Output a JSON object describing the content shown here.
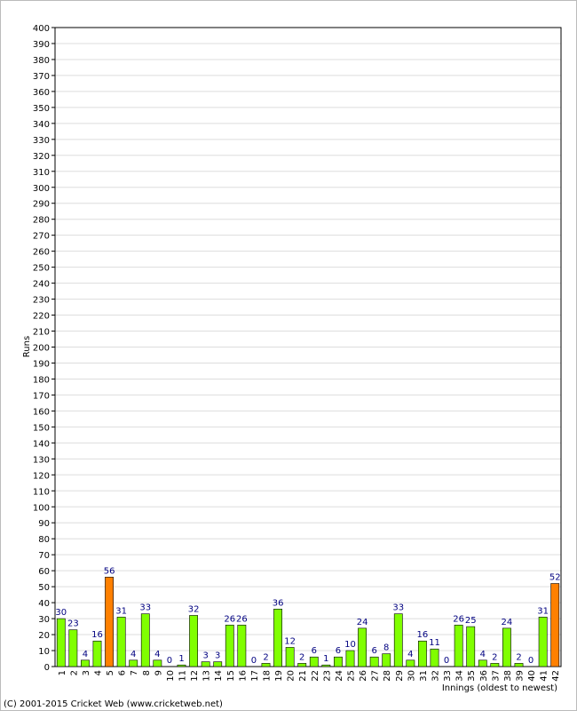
{
  "chart_data": {
    "type": "bar",
    "y_label": "Runs",
    "x_label": "Innings (oldest to newest)",
    "footer": "(C) 2001-2015 Cricket Web (www.cricketweb.net)",
    "categories": [
      "1",
      "2",
      "3",
      "4",
      "5",
      "6",
      "7",
      "8",
      "9",
      "10",
      "11",
      "12",
      "13",
      "14",
      "15",
      "16",
      "17",
      "18",
      "19",
      "20",
      "21",
      "22",
      "23",
      "24",
      "25",
      "26",
      "27",
      "28",
      "29",
      "30",
      "31",
      "32",
      "33",
      "34",
      "35",
      "36",
      "37",
      "38",
      "39",
      "40",
      "41",
      "42"
    ],
    "values": [
      30,
      23,
      4,
      16,
      56,
      31,
      4,
      33,
      4,
      0,
      1,
      32,
      3,
      3,
      26,
      26,
      0,
      2,
      36,
      12,
      2,
      6,
      1,
      6,
      10,
      24,
      6,
      8,
      33,
      4,
      16,
      11,
      0,
      26,
      25,
      4,
      2,
      24,
      2,
      0,
      31,
      52
    ],
    "colors": [
      "#80ff00",
      "#80ff00",
      "#80ff00",
      "#80ff00",
      "#ff8000",
      "#80ff00",
      "#80ff00",
      "#80ff00",
      "#80ff00",
      "#80ff00",
      "#80ff00",
      "#80ff00",
      "#80ff00",
      "#80ff00",
      "#80ff00",
      "#80ff00",
      "#80ff00",
      "#80ff00",
      "#80ff00",
      "#80ff00",
      "#80ff00",
      "#80ff00",
      "#80ff00",
      "#80ff00",
      "#80ff00",
      "#80ff00",
      "#80ff00",
      "#80ff00",
      "#80ff00",
      "#80ff00",
      "#80ff00",
      "#80ff00",
      "#80ff00",
      "#80ff00",
      "#80ff00",
      "#80ff00",
      "#80ff00",
      "#80ff00",
      "#80ff00",
      "#80ff00",
      "#80ff00",
      "#ff8000"
    ],
    "ylim": [
      0,
      400
    ],
    "yticks": [
      0,
      10,
      20,
      30,
      40,
      50,
      60,
      70,
      80,
      90,
      100,
      110,
      120,
      130,
      140,
      150,
      160,
      170,
      180,
      190,
      200,
      210,
      220,
      230,
      240,
      250,
      260,
      270,
      280,
      290,
      300,
      310,
      320,
      330,
      340,
      350,
      360,
      370,
      380,
      390,
      400
    ],
    "grid": true
  }
}
